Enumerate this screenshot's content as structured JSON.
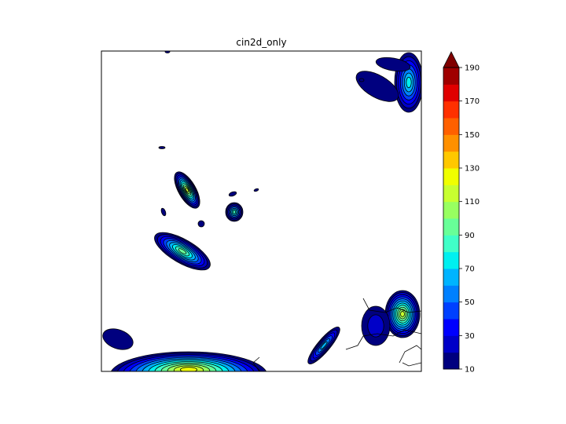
{
  "chart_data": {
    "type": "contourf",
    "title": "cin2d_only",
    "xlabel": "",
    "ylabel": "",
    "colorbar": {
      "levels": [
        10,
        20,
        30,
        40,
        50,
        60,
        70,
        80,
        90,
        100,
        110,
        120,
        130,
        140,
        150,
        160,
        170,
        180,
        190
      ],
      "tick_labels": [
        "10",
        "30",
        "50",
        "70",
        "90",
        "110",
        "130",
        "150",
        "170",
        "190"
      ],
      "extend": "max",
      "colors": [
        "#00007f",
        "#0000c8",
        "#0000ff",
        "#0040ff",
        "#0080ff",
        "#00b4ff",
        "#00f0f0",
        "#40ffc8",
        "#68ff98",
        "#98ff60",
        "#c8ff30",
        "#f0ff00",
        "#ffc800",
        "#ff9000",
        "#ff6000",
        "#ff3000",
        "#e00000",
        "#a00000"
      ],
      "over_color": "#800000"
    },
    "axes_ticks_visible": false,
    "grid": false,
    "features": [
      "filled contours with black contour lines",
      "coastline outlines"
    ]
  }
}
